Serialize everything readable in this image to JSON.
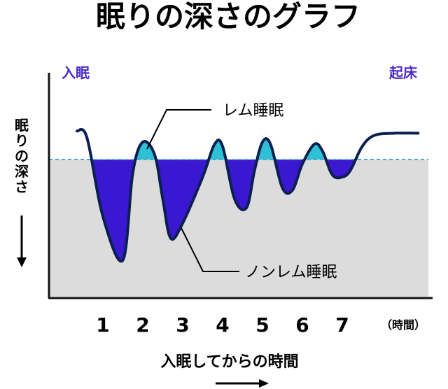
{
  "chart_data": {
    "type": "area",
    "title": "眠りの深さのグラフ",
    "start_label": "入眠",
    "end_label": "起床",
    "ylabel": "眠りの深さ",
    "xlabel": "入眠してからの時間",
    "x_unit": "（時間）",
    "x_ticks": [
      "1",
      "2",
      "3",
      "4",
      "5",
      "6",
      "7"
    ],
    "threshold_depth": 0,
    "annotations": {
      "rem": "レム睡眠",
      "non_rem": "ノンレム睡眠"
    },
    "series": [
      {
        "x": [
          0.35,
          0.6,
          1.0,
          1.5,
          1.75,
          2.0,
          2.3,
          2.5,
          2.7,
          3.0,
          3.5,
          3.8,
          4.0,
          4.3,
          4.6,
          4.8,
          5.0,
          5.2,
          5.5,
          5.75,
          6.0,
          6.3,
          6.5,
          6.75,
          7.0,
          7.2,
          7.5,
          7.8,
          8.3,
          8.9
        ],
        "y": [
          -1.3,
          -1.0,
          2.6,
          4.6,
          0.6,
          -0.8,
          -0.2,
          1.8,
          3.6,
          2.9,
          0.8,
          -0.7,
          -0.6,
          1.8,
          2.2,
          0.5,
          -0.8,
          -0.7,
          1.3,
          1.4,
          0.2,
          -0.7,
          -0.4,
          0.7,
          0.8,
          0.5,
          -0.6,
          -1.1,
          -1.2,
          -1.2
        ]
      }
    ],
    "colors": {
      "deep": "#3a17d0",
      "shallow": "#2ec1d6",
      "background_area": "#dcdcdc",
      "curve": "#0a2050",
      "threshold": "#4aa8cc",
      "corner_labels": "#4b2bc6"
    }
  }
}
